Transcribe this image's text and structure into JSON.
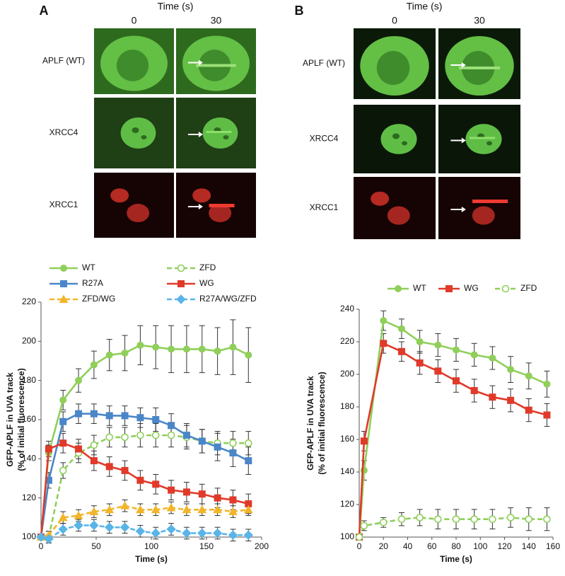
{
  "panels": [
    {
      "label": "A",
      "time_label": "Time (s)",
      "columns": [
        "0",
        "30"
      ],
      "rows": [
        "APLF (WT)",
        "XRCC4",
        "XRCC1"
      ]
    },
    {
      "label": "B",
      "time_label": "Time (s)",
      "columns": [
        "0",
        "30"
      ],
      "rows": [
        "APLF (WT)",
        "XRCC4",
        "XRCC1"
      ]
    }
  ],
  "chart_data": [
    {
      "type": "line",
      "xlabel": "Time (s)",
      "ylabel": [
        "GFP-APLF in UVA track",
        "(% of initial fluorescence)"
      ],
      "x": [
        0,
        7,
        20,
        34,
        48,
        62,
        76,
        90,
        104,
        118,
        132,
        146,
        160,
        174,
        188
      ],
      "xlim": [
        0,
        200
      ],
      "xticks": [
        0,
        50,
        100,
        150,
        200
      ],
      "ylim": [
        100,
        220
      ],
      "yticks": [
        100,
        120,
        140,
        160,
        180,
        200,
        220
      ],
      "series": [
        {
          "name": "WT",
          "color": "#8fcf5a",
          "marker": "circle",
          "dashed": false,
          "filled": true,
          "values": [
            100,
            143,
            170,
            180,
            188,
            193,
            194,
            198,
            197,
            196,
            196,
            196,
            195,
            197,
            193
          ],
          "errors": [
            1,
            4,
            5,
            6,
            7,
            8,
            9,
            10,
            11,
            12,
            12,
            12,
            12,
            14,
            14
          ]
        },
        {
          "name": "ZFD",
          "color": "#8fcf5a",
          "marker": "circle",
          "dashed": true,
          "filled": false,
          "values": [
            100,
            100,
            134,
            143,
            147,
            151,
            151,
            152,
            152,
            152,
            151,
            149,
            148,
            148,
            148
          ],
          "errors": [
            1,
            3,
            4,
            5,
            5,
            5,
            5,
            6,
            6,
            6,
            6,
            6,
            6,
            6,
            6
          ]
        },
        {
          "name": "R27A",
          "color": "#4a86c8",
          "marker": "square",
          "dashed": false,
          "filled": true,
          "values": [
            100,
            129,
            159,
            163,
            163,
            162,
            162,
            161,
            160,
            157,
            152,
            149,
            146,
            143,
            139
          ],
          "errors": [
            1,
            4,
            5,
            5,
            5,
            5,
            5,
            5,
            6,
            6,
            6,
            6,
            7,
            7,
            7
          ]
        },
        {
          "name": "WG",
          "color": "#e03a2a",
          "marker": "square",
          "dashed": false,
          "filled": true,
          "values": [
            100,
            145,
            148,
            145,
            139,
            136,
            134,
            129,
            127,
            124,
            123,
            122,
            120,
            119,
            117
          ],
          "errors": [
            1,
            4,
            5,
            5,
            5,
            5,
            5,
            5,
            5,
            5,
            5,
            5,
            5,
            5,
            5
          ]
        },
        {
          "name": "ZFD/WG",
          "color": "#f2b52a",
          "marker": "triangle",
          "dashed": true,
          "filled": true,
          "values": [
            100,
            101,
            110,
            111,
            113,
            114,
            116,
            114,
            114,
            115,
            114,
            114,
            114,
            113,
            114
          ],
          "errors": [
            1,
            2,
            3,
            3,
            3,
            3,
            3,
            3,
            3,
            3,
            3,
            3,
            3,
            3,
            3
          ]
        },
        {
          "name": "R27A/WG/ZFD",
          "color": "#59b5e8",
          "marker": "diamond",
          "dashed": true,
          "filled": true,
          "values": [
            100,
            99,
            104,
            106,
            106,
            105,
            105,
            103,
            102,
            104,
            102,
            102,
            102,
            101,
            101
          ],
          "errors": [
            1,
            2,
            3,
            3,
            3,
            3,
            3,
            3,
            3,
            3,
            3,
            3,
            3,
            3,
            3
          ]
        }
      ]
    },
    {
      "type": "line",
      "xlabel": "Time (s)",
      "ylabel": [
        "GFP-APLF in UVA track",
        "(% of initial fluorescence)"
      ],
      "x": [
        0,
        4,
        20,
        35,
        50,
        65,
        80,
        95,
        110,
        125,
        140,
        155
      ],
      "xlim": [
        0,
        160
      ],
      "xticks": [
        0,
        20,
        40,
        60,
        80,
        100,
        120,
        140,
        160
      ],
      "ylim": [
        100,
        240
      ],
      "yticks": [
        100,
        120,
        140,
        160,
        180,
        200,
        220,
        240
      ],
      "series": [
        {
          "name": "WT",
          "color": "#8fcf5a",
          "marker": "circle",
          "dashed": false,
          "filled": true,
          "values": [
            100,
            141,
            233,
            228,
            220,
            218,
            215,
            212,
            210,
            203,
            199,
            194
          ],
          "errors": [
            1,
            6,
            6,
            6,
            7,
            7,
            7,
            7,
            7,
            8,
            8,
            8
          ]
        },
        {
          "name": "WG",
          "color": "#e03a2a",
          "marker": "square",
          "dashed": false,
          "filled": true,
          "values": [
            100,
            159,
            219,
            214,
            207,
            202,
            196,
            190,
            186,
            184,
            178,
            175
          ],
          "errors": [
            1,
            6,
            6,
            6,
            7,
            7,
            7,
            7,
            7,
            7,
            7,
            7
          ]
        },
        {
          "name": "ZFD",
          "color": "#8fcf5a",
          "marker": "circle",
          "dashed": true,
          "filled": false,
          "values": [
            100,
            107,
            109,
            111,
            112,
            111,
            111,
            111,
            111,
            112,
            111,
            111
          ],
          "errors": [
            1,
            3,
            3,
            4,
            5,
            6,
            6,
            6,
            6,
            6,
            7,
            7
          ]
        }
      ]
    }
  ]
}
